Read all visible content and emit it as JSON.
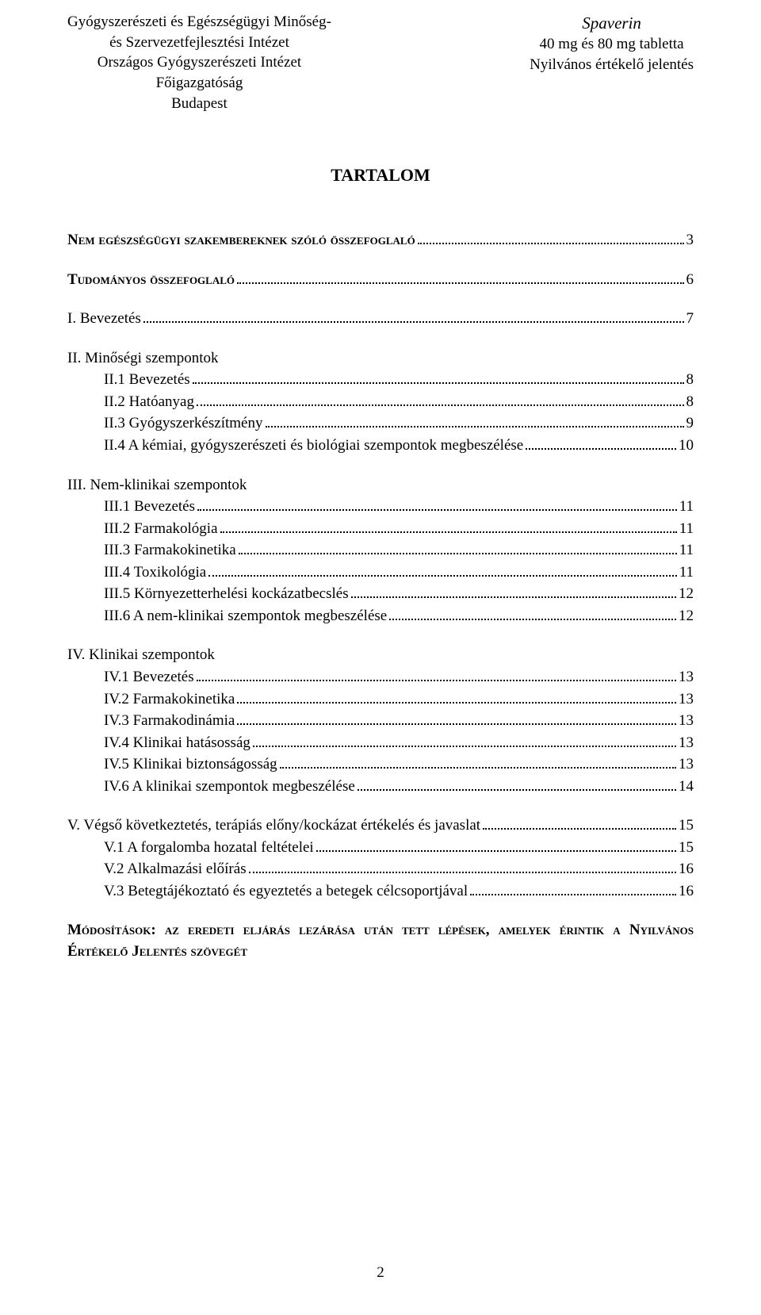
{
  "header": {
    "left": {
      "line1": "Gyógyszerészeti és Egészségügyi Minőség-",
      "line2": "és Szervezetfejlesztési Intézet",
      "line3": "Országos Gyógyszerészeti Intézet",
      "line4": "Főigazgatóság",
      "line5": "Budapest"
    },
    "right": {
      "product_name": "Spaverin",
      "line2": "40 mg és 80 mg tabletta",
      "line3": "Nyilvános értékelő jelentés"
    }
  },
  "main_title": "TARTALOM",
  "toc": [
    {
      "level": 0,
      "smallcaps": true,
      "text": "Nem egészségügyi szakembereknek szóló összefoglaló",
      "page": "3"
    },
    {
      "level": 0,
      "smallcaps": true,
      "text": "Tudományos összefoglaló",
      "page": "6"
    },
    {
      "level": 0,
      "no_dots": true,
      "text": "I. Bevezetés",
      "page": "7"
    },
    {
      "level": 0,
      "no_dots": true,
      "text": "II. Minőségi szempontok",
      "page": ""
    },
    {
      "level": 1,
      "text": "II.1 Bevezetés",
      "page": "8"
    },
    {
      "level": 1,
      "text": "II.2 Hatóanyag",
      "page": "8"
    },
    {
      "level": 1,
      "text": "II.3 Gyógyszerkészítmény",
      "page": "9"
    },
    {
      "level": 1,
      "text": "II.4 A kémiai, gyógyszerészeti és biológiai szempontok megbeszélése",
      "page": "10"
    },
    {
      "level": 0,
      "no_dots": true,
      "text": "III. Nem-klinikai szempontok",
      "page": ""
    },
    {
      "level": 1,
      "text": "III.1 Bevezetés",
      "page": "11"
    },
    {
      "level": 1,
      "text": "III.2 Farmakológia",
      "page": "11"
    },
    {
      "level": 1,
      "text": "III.3 Farmakokinetika",
      "page": "11"
    },
    {
      "level": 1,
      "text": "III.4 Toxikológia",
      "page": "11"
    },
    {
      "level": 1,
      "text": "III.5 Környezetterhelési kockázatbecslés",
      "page": "12"
    },
    {
      "level": 1,
      "text": "III.6 A nem-klinikai szempontok megbeszélése",
      "page": "12"
    },
    {
      "level": 0,
      "no_dots": true,
      "text": "IV. Klinikai szempontok",
      "page": ""
    },
    {
      "level": 1,
      "text": "IV.1 Bevezetés",
      "page": "13"
    },
    {
      "level": 1,
      "text": "IV.2 Farmakokinetika",
      "page": "13"
    },
    {
      "level": 1,
      "text": "IV.3 Farmakodinámia",
      "page": "13"
    },
    {
      "level": 1,
      "text": "IV.4 Klinikai hatásosság",
      "page": "13"
    },
    {
      "level": 1,
      "text": "IV.5 Klinikai biztonságosság",
      "page": "13"
    },
    {
      "level": 1,
      "text": "IV.6 A klinikai szempontok megbeszélése",
      "page": "14"
    },
    {
      "level": 0,
      "no_dots": true,
      "text": "V. Végső következtetés, terápiás előny/kockázat értékelés és javaslat",
      "page": "15"
    },
    {
      "level": 1,
      "text": "V.1 A forgalomba hozatal feltételei",
      "page": "15"
    },
    {
      "level": 1,
      "text": "V.2 Alkalmazási előírás",
      "page": "16"
    },
    {
      "level": 1,
      "text": "V.3 Betegtájékoztató és egyeztetés a betegek célcsoportjával",
      "page": "16"
    }
  ],
  "footer_paragraph": "Módosítások: az eredeti eljárás lezárása után tett lépések, amelyek érintik a Nyilvános Értékelő Jelentés szövegét",
  "page_number": "2"
}
